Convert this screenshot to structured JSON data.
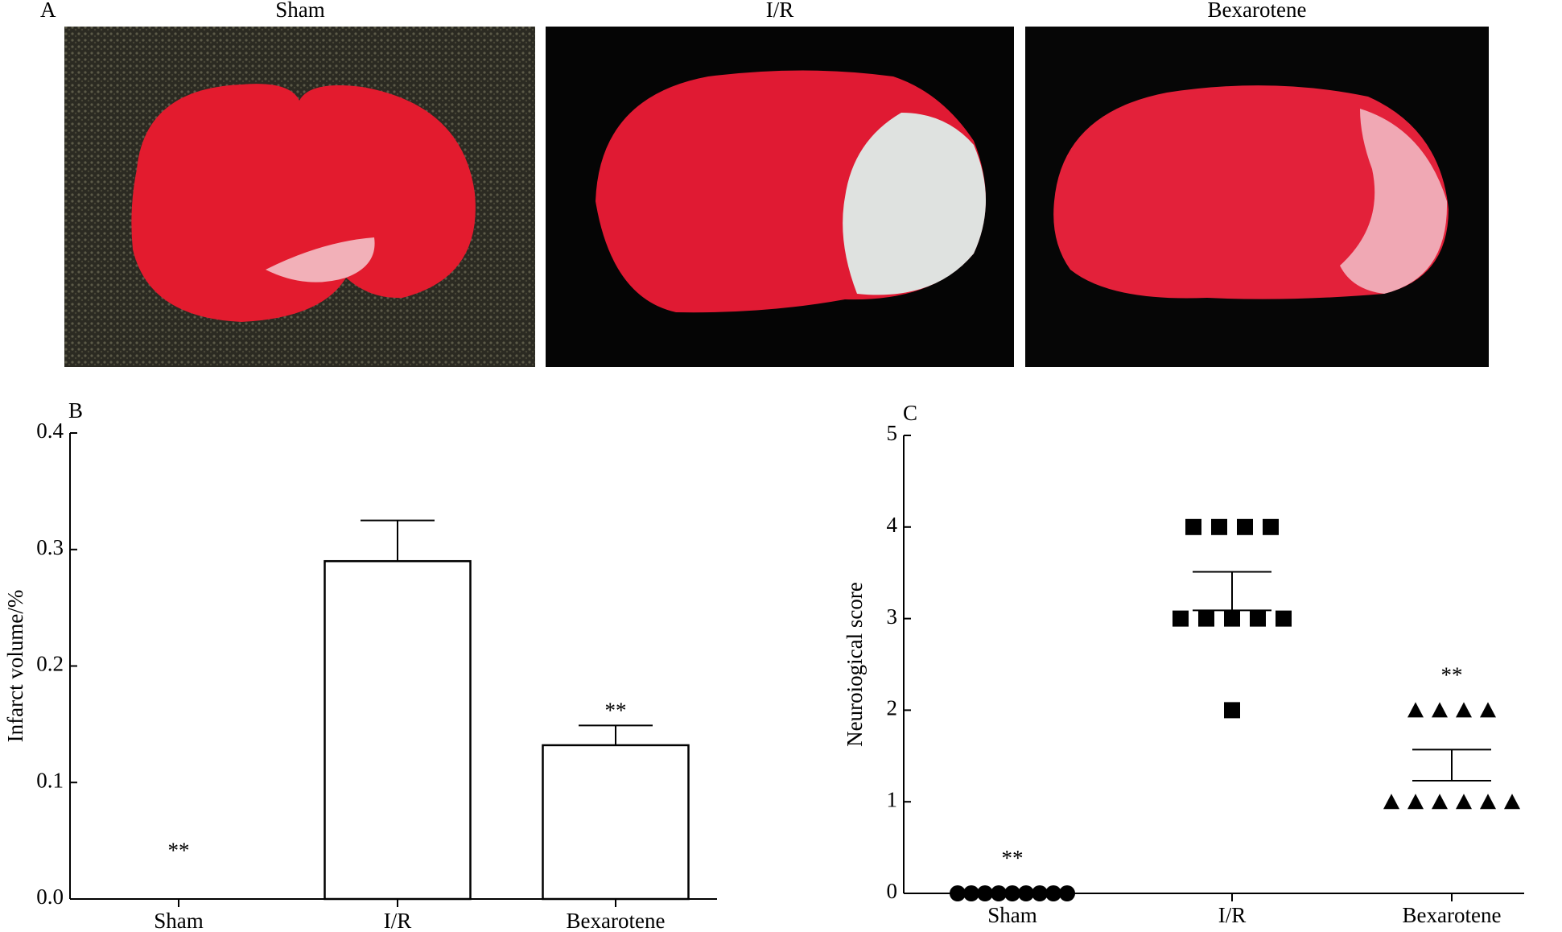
{
  "panel_a": {
    "panel_label": "A",
    "titles": [
      "Sham",
      "I/R",
      "Bexarotene"
    ]
  },
  "chart_data": [
    {
      "type": "bar",
      "panel_label": "B",
      "ylabel": "Infarct volume/%",
      "categories": [
        "Sham",
        "I/R",
        "Bexarotene"
      ],
      "values": [
        0,
        0.29,
        0.132
      ],
      "errors": [
        0,
        0.035,
        0.017
      ],
      "significance": [
        "**",
        null,
        "**"
      ],
      "color": "#ffffff",
      "edge_color": "#000000",
      "ylim": [
        0,
        0.4
      ],
      "yticks": [
        {
          "value": 0,
          "label": "0.0"
        },
        0.1,
        0.2,
        0.3,
        0.4
      ]
    },
    {
      "type": "scatter",
      "panel_label": "C",
      "ylabel": "Neuroiogical score",
      "categories": [
        "Sham",
        "I/R",
        "Bexarotene"
      ],
      "series": [
        {
          "marker": "circle",
          "color": "#000000",
          "values": [
            0,
            0,
            0,
            0,
            0,
            0,
            0,
            0,
            0
          ]
        },
        {
          "marker": "square",
          "color": "#000000",
          "values": [
            4,
            4,
            4,
            4,
            3,
            3,
            3,
            3,
            3,
            2
          ]
        },
        {
          "marker": "triangle",
          "color": "#000000",
          "values": [
            2,
            2,
            2,
            2,
            1,
            1,
            1,
            1,
            1,
            1
          ]
        }
      ],
      "means": [
        0,
        3.3,
        1.4
      ],
      "sem": [
        0,
        0.21,
        0.17
      ],
      "significance": [
        "**",
        null,
        "**"
      ],
      "ylim": [
        0,
        5
      ],
      "yticks": [
        0,
        1,
        2,
        3,
        4,
        5
      ]
    }
  ]
}
